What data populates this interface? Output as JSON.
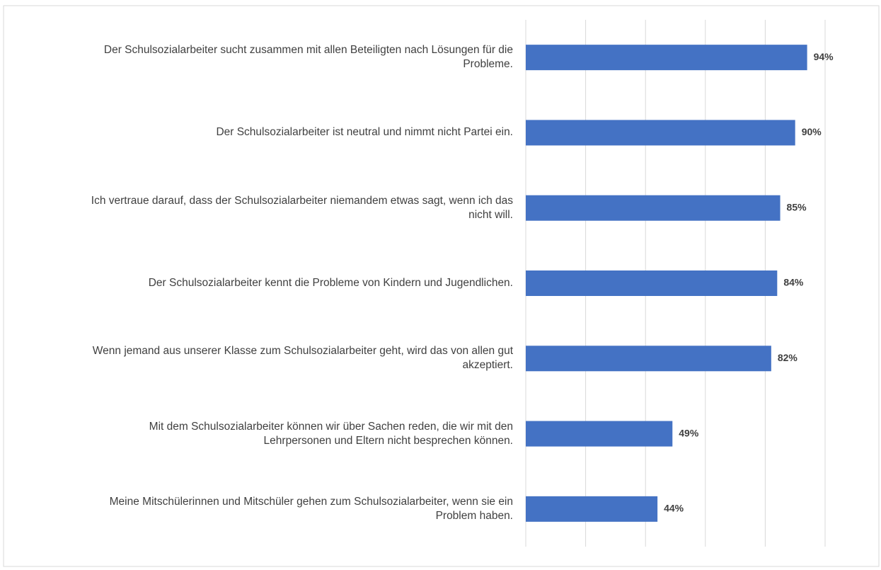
{
  "chart_data": {
    "type": "bar",
    "orientation": "horizontal",
    "categories": [
      "Der Schulsozialarbeiter sucht zusammen mit allen Beteiligten nach Lösungen für die Probleme.",
      "Der Schulsozialarbeiter ist neutral und nimmt nicht Partei ein.",
      "Ich vertraue darauf, dass der Schulsozialarbeiter niemandem etwas sagt, wenn ich das nicht will.",
      "Der Schulsozialarbeiter kennt die Probleme von Kindern und Jugendlichen.",
      "Wenn jemand aus unserer Klasse zum Schulsozialarbeiter geht, wird das von allen gut akzeptiert.",
      "Mit dem Schulsozialarbeiter können wir über Sachen reden, die wir mit den Lehrpersonen und Eltern nicht besprechen können.",
      "Meine Mitschülerinnen und Mitschüler gehen zum Schulsozialarbeiter, wenn sie ein Problem haben."
    ],
    "values": [
      94,
      90,
      85,
      84,
      82,
      49,
      44
    ],
    "value_labels": [
      "94%",
      "90%",
      "85%",
      "84%",
      "82%",
      "49%",
      "44%"
    ],
    "color": "#4472c4",
    "xlim": [
      0,
      100
    ],
    "xticks": [
      0,
      20,
      40,
      60,
      80,
      100
    ],
    "grid": true
  }
}
